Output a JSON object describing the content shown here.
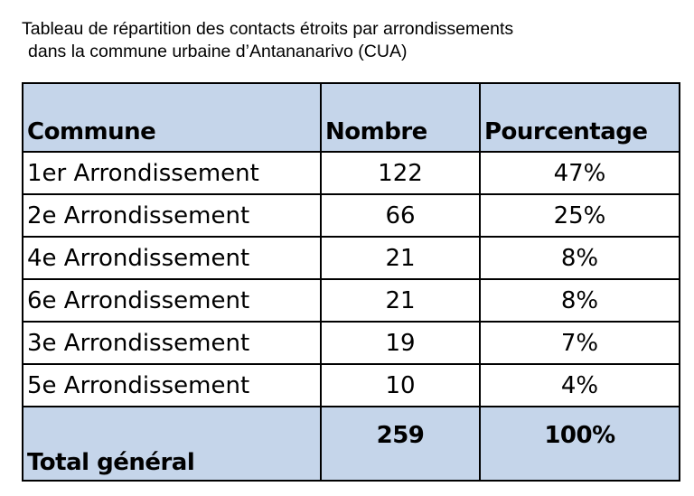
{
  "caption": {
    "line1": "Tableau de répartition des contacts étroits par arrondissements",
    "line2": "dans la commune urbaine d’Antananarivo (CUA)"
  },
  "table": {
    "headers": [
      "Commune",
      "Nombre",
      "Pourcentage"
    ],
    "rows": [
      {
        "commune": "1er Arrondissement",
        "nombre": "122",
        "pourcentage": "47%"
      },
      {
        "commune": "2e Arrondissement",
        "nombre": "66",
        "pourcentage": "25%"
      },
      {
        "commune": "4e Arrondissement",
        "nombre": "21",
        "pourcentage": "8%"
      },
      {
        "commune": "6e Arrondissement",
        "nombre": "21",
        "pourcentage": "8%"
      },
      {
        "commune": "3e Arrondissement",
        "nombre": "19",
        "pourcentage": "7%"
      },
      {
        "commune": "5e Arrondissement",
        "nombre": "10",
        "pourcentage": "4%"
      }
    ],
    "total": {
      "commune": "Total général",
      "nombre": "259",
      "pourcentage": "100%"
    }
  },
  "colors": {
    "header_fill": "#c5d5ea",
    "border": "#000000"
  },
  "chart_data": {
    "type": "table",
    "title": "Tableau de répartition des contacts étroits par arrondissements dans la commune urbaine d’Antananarivo (CUA)",
    "columns": [
      "Commune",
      "Nombre",
      "Pourcentage"
    ],
    "categories": [
      "1er Arrondissement",
      "2e Arrondissement",
      "4e Arrondissement",
      "6e Arrondissement",
      "3e Arrondissement",
      "5e Arrondissement"
    ],
    "series": [
      {
        "name": "Nombre",
        "values": [
          122,
          66,
          21,
          21,
          19,
          10
        ]
      },
      {
        "name": "Pourcentage",
        "values": [
          47,
          25,
          8,
          8,
          7,
          4
        ]
      }
    ],
    "total": {
      "label": "Total général",
      "Nombre": 259,
      "Pourcentage": 100
    }
  }
}
